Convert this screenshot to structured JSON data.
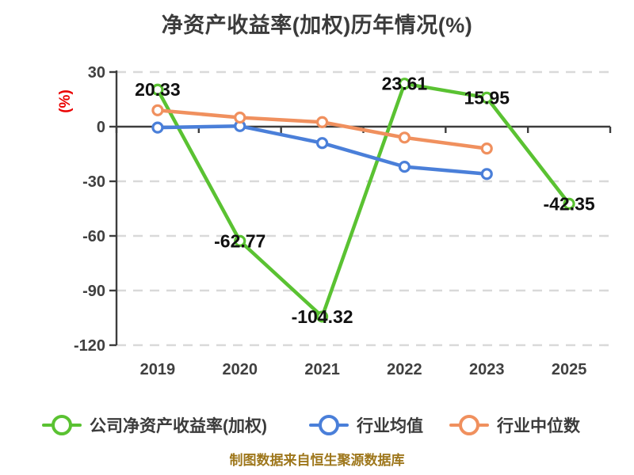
{
  "page": {
    "title": "净资产收益率(加权)历年情况(%)",
    "title_color": "#3b3b3b",
    "caption": "制图数据来自恒生聚源数据库",
    "caption_color": "#9e771c"
  },
  "chart_data": {
    "type": "line",
    "title": "净资产收益率(加权)历年情况(%)",
    "ylabel": "(%)",
    "ylabel_color": "#ea0000",
    "categories": [
      "2019",
      "2020",
      "2021",
      "2022",
      "2023",
      "2025"
    ],
    "ylim": [
      -120,
      30
    ],
    "yticks": [
      30,
      0,
      -30,
      -60,
      -90,
      -120
    ],
    "grid": "horizontal-dashed",
    "grid_color": "#d9d9d9",
    "axis_color": "#3d3d3d",
    "tick_label_color": "#404040",
    "data_label_color": "#111111",
    "legend_position": "bottom",
    "series": [
      {
        "name": "公司净资产收益率(加权)",
        "color": "#5ac232",
        "values": [
          20.33,
          -62.77,
          -104.32,
          23.61,
          15.95,
          -42.35
        ],
        "data_labels": [
          "20.33",
          "-62.77",
          "-104.32",
          "23.61",
          "15.95",
          "-42.35"
        ]
      },
      {
        "name": "行业均值",
        "color": "#4a7fd9",
        "values": [
          -0.5,
          0.3,
          -9,
          -22,
          -26,
          null
        ],
        "data_labels": null
      },
      {
        "name": "行业中位数",
        "color": "#f0905e",
        "values": [
          9,
          5,
          2.5,
          -6,
          -12,
          null
        ],
        "data_labels": null
      }
    ],
    "caption": "制图数据来自恒生聚源数据库"
  }
}
